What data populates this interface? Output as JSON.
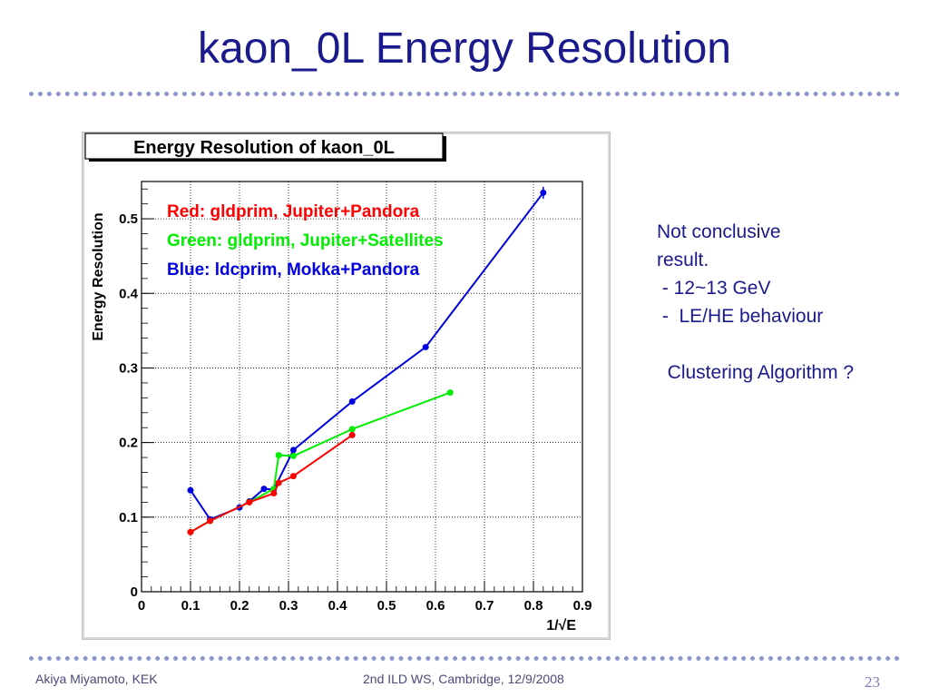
{
  "slide": {
    "title": "kaon_0L Energy Resolution",
    "notes": [
      "Not conclusive",
      "result.",
      " - 12~13 GeV",
      " -  LE/HE behaviour",
      "",
      "  Clustering Algorithm ?"
    ],
    "footer_left": "Akiya Miyamoto, KEK",
    "footer_center": "2nd ILD WS, Cambridge, 12/9/2008",
    "page_number": "23"
  },
  "chart_data": {
    "type": "line",
    "title": "Energy Resolution of kaon_0L",
    "xlabel": "1/√E",
    "ylabel": "Energy Resolution",
    "xlim": [
      0,
      0.9
    ],
    "ylim": [
      0,
      0.55
    ],
    "x_ticks": [
      "0",
      "0.1",
      "0.2",
      "0.3",
      "0.4",
      "0.5",
      "0.6",
      "0.7",
      "0.8",
      "0.9"
    ],
    "y_ticks": [
      "0",
      "0.1",
      "0.2",
      "0.3",
      "0.4",
      "0.5"
    ],
    "grid": true,
    "legend_text": [
      {
        "text": "Red: gldprim, Jupiter+Pandora",
        "color": "#ff0000"
      },
      {
        "text": "Green: gldprim, Jupiter+Satellites",
        "color": "#00ee00"
      },
      {
        "text": "Blue: ldcprim, Mokka+Pandora",
        "color": "#0000e0"
      }
    ],
    "series": [
      {
        "color": "#0000e0",
        "x": [
          0.1,
          0.14,
          0.2,
          0.22,
          0.25,
          0.27,
          0.31,
          0.43,
          0.58,
          0.82
        ],
        "y": [
          0.136,
          0.097,
          0.113,
          0.121,
          0.138,
          0.137,
          0.19,
          0.255,
          0.328,
          0.535
        ],
        "err": [
          0,
          0,
          0,
          0,
          0,
          0,
          0,
          0,
          0,
          0.008
        ]
      },
      {
        "color": "#00ee00",
        "x": [
          0.1,
          0.14,
          0.22,
          0.27,
          0.28,
          0.31,
          0.43,
          0.63
        ],
        "y": [
          0.08,
          0.095,
          0.12,
          0.138,
          0.183,
          0.182,
          0.218,
          0.267
        ],
        "err": [
          0,
          0,
          0,
          0,
          0,
          0,
          0,
          0
        ]
      },
      {
        "color": "#ff0000",
        "x": [
          0.1,
          0.14,
          0.22,
          0.27,
          0.28,
          0.31,
          0.43
        ],
        "y": [
          0.08,
          0.095,
          0.12,
          0.132,
          0.146,
          0.155,
          0.21
        ],
        "err": [
          0,
          0,
          0,
          0,
          0,
          0,
          0
        ]
      }
    ]
  }
}
